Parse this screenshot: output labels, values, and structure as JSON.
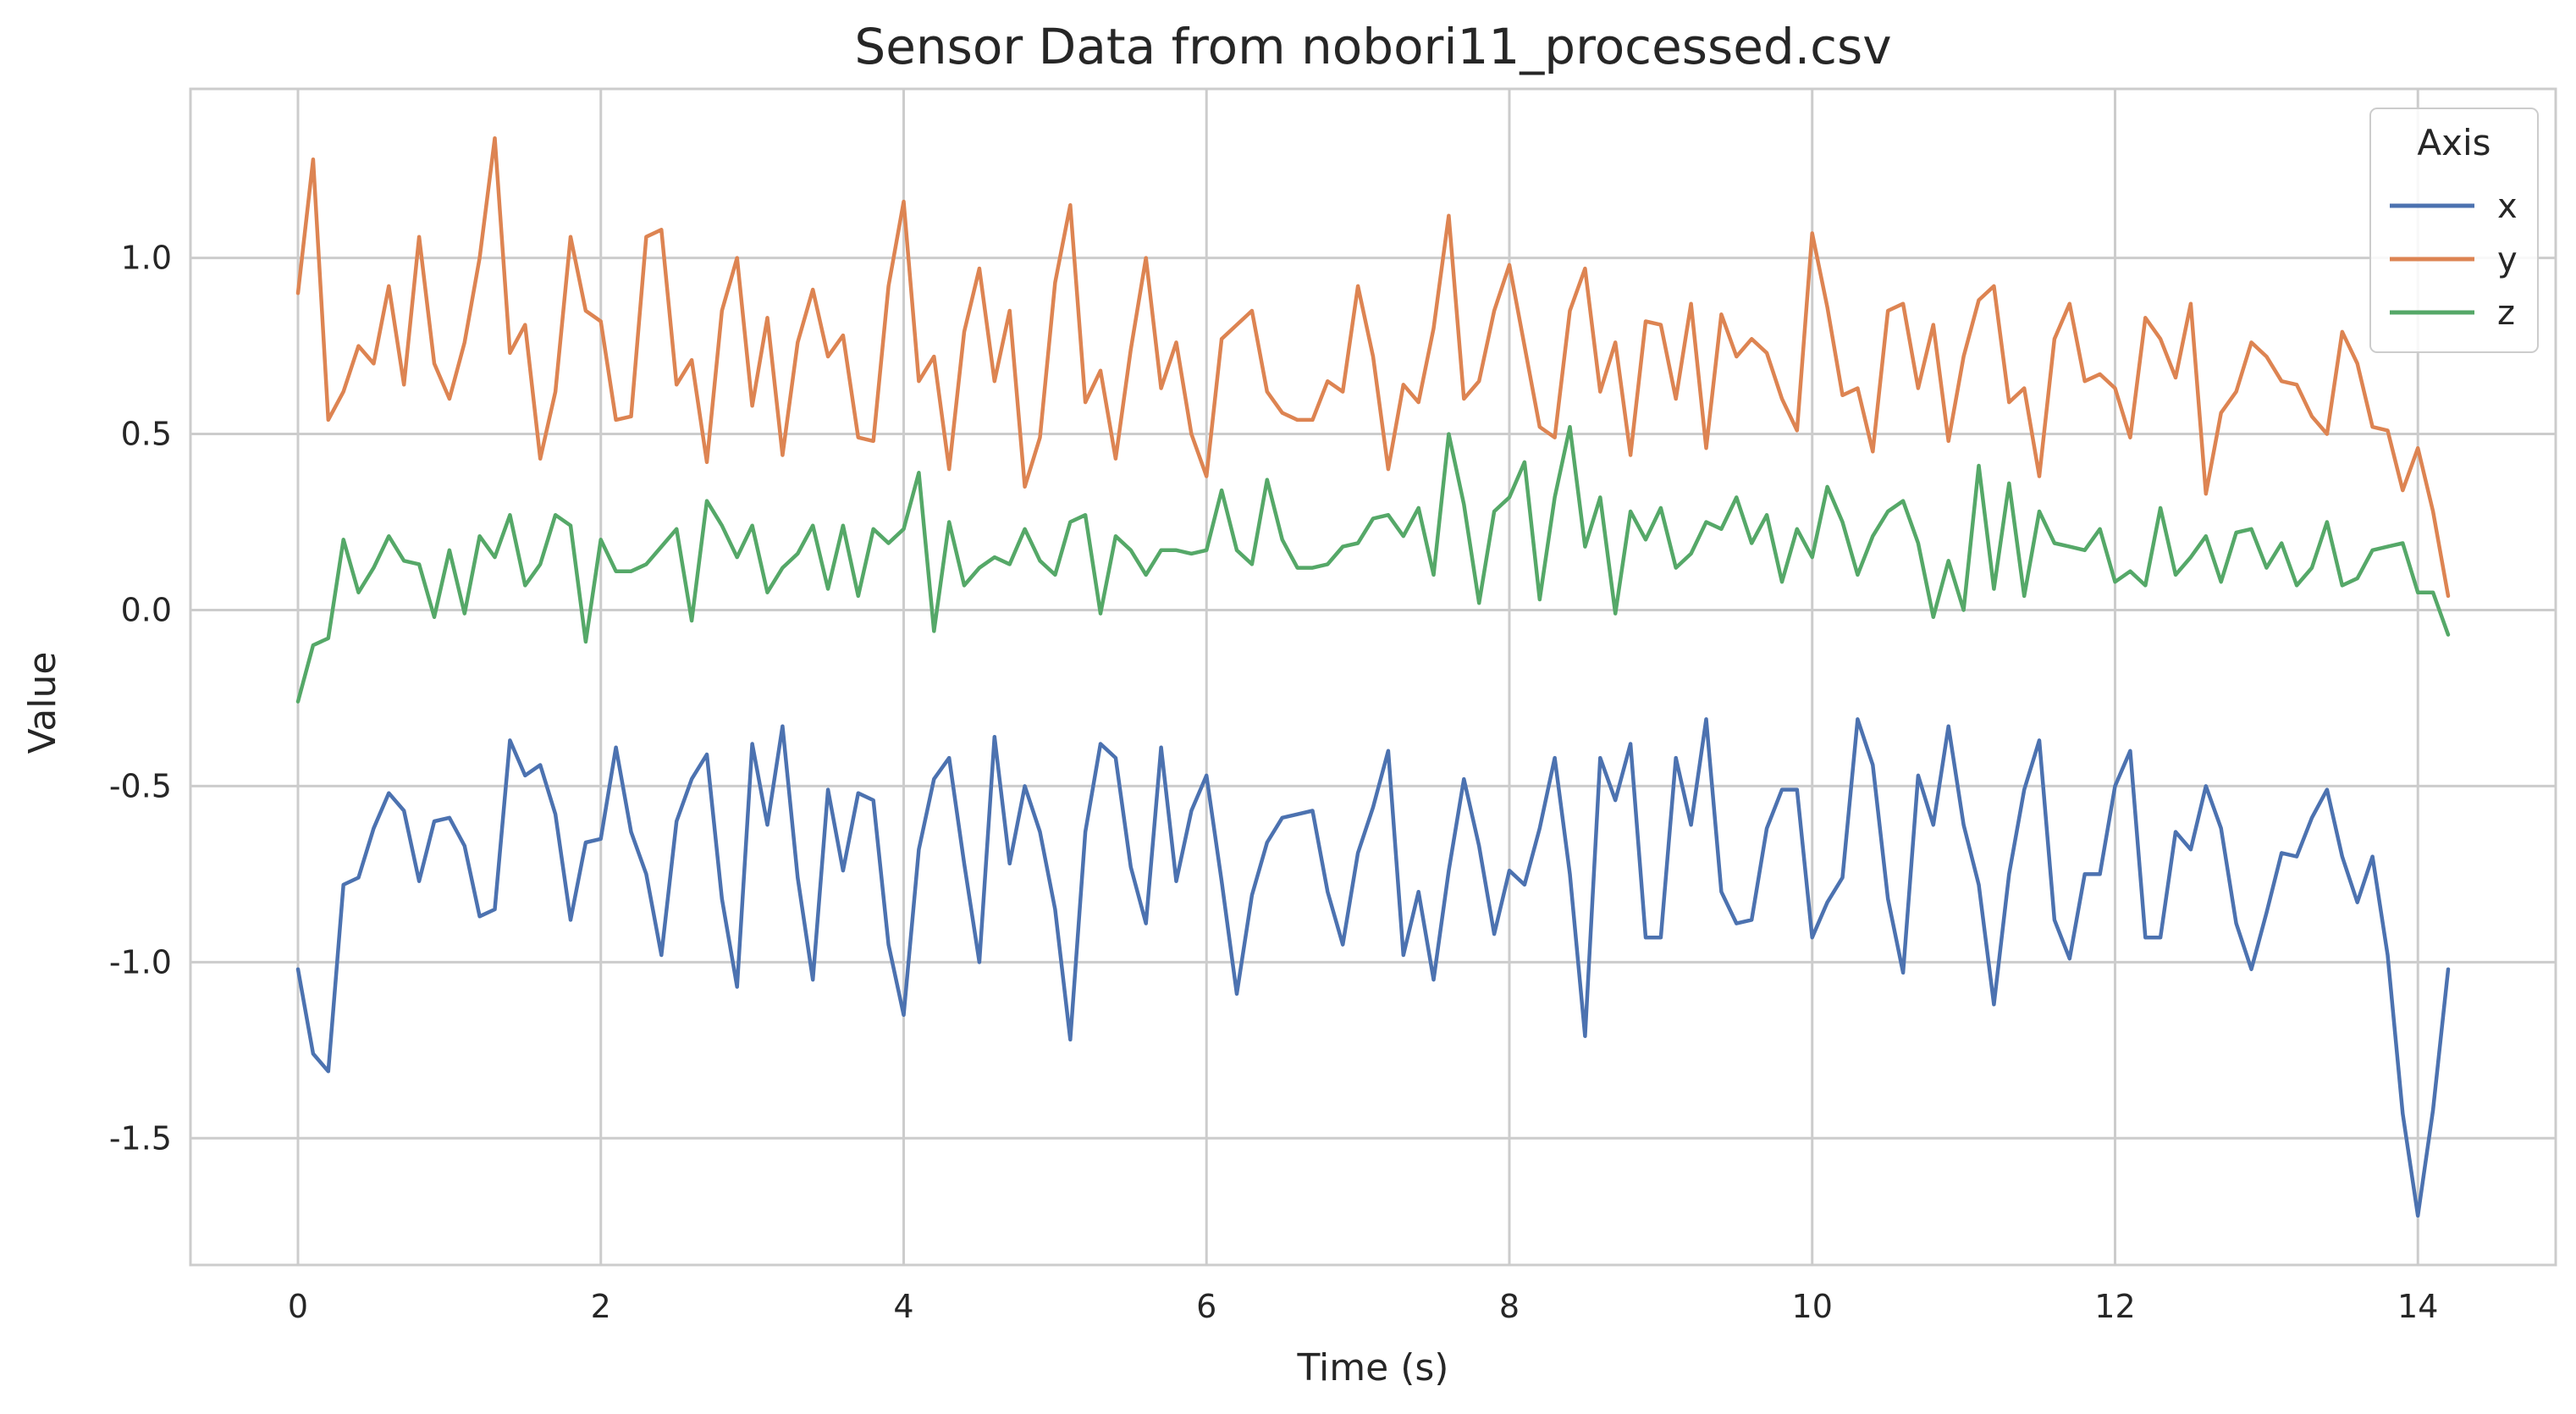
{
  "chart_data": {
    "type": "line",
    "title": "Sensor Data from nobori11_processed.csv",
    "xlabel": "Time (s)",
    "ylabel": "Value",
    "xlim": [
      -0.71,
      14.91
    ],
    "ylim": [
      -1.86,
      1.48
    ],
    "xticks": [
      0,
      2,
      4,
      6,
      8,
      10,
      12,
      14
    ],
    "xtick_labels": [
      "0",
      "2",
      "4",
      "6",
      "8",
      "10",
      "12",
      "14"
    ],
    "yticks": [
      -1.5,
      -1.0,
      -0.5,
      0.0,
      0.5,
      1.0
    ],
    "ytick_labels": [
      "-1.5",
      "-1.0",
      "-0.5",
      "0.0",
      "0.5",
      "1.0"
    ],
    "grid": true,
    "legend": {
      "title": "Axis",
      "placement": "top-right"
    },
    "x_start": 0.0,
    "x_step": 0.1,
    "series": [
      {
        "name": "x",
        "color": "#4c72b0",
        "values": [
          -1.02,
          -1.26,
          -1.31,
          -0.78,
          -0.76,
          -0.62,
          -0.52,
          -0.57,
          -0.77,
          -0.6,
          -0.59,
          -0.67,
          -0.87,
          -0.85,
          -0.37,
          -0.47,
          -0.44,
          -0.58,
          -0.88,
          -0.66,
          -0.65,
          -0.39,
          -0.63,
          -0.75,
          -0.98,
          -0.6,
          -0.48,
          -0.41,
          -0.82,
          -1.07,
          -0.38,
          -0.61,
          -0.33,
          -0.76,
          -1.05,
          -0.51,
          -0.74,
          -0.52,
          -0.54,
          -0.95,
          -1.15,
          -0.68,
          -0.48,
          -0.42,
          -0.72,
          -1.0,
          -0.36,
          -0.72,
          -0.5,
          -0.63,
          -0.85,
          -1.22,
          -0.63,
          -0.38,
          -0.42,
          -0.73,
          -0.89,
          -0.39,
          -0.77,
          -0.57,
          -0.47,
          -0.77,
          -1.09,
          -0.81,
          -0.66,
          -0.59,
          -0.58,
          -0.57,
          -0.8,
          -0.95,
          -0.69,
          -0.56,
          -0.4,
          -0.98,
          -0.8,
          -1.05,
          -0.74,
          -0.48,
          -0.67,
          -0.92,
          -0.74,
          -0.78,
          -0.62,
          -0.42,
          -0.75,
          -1.21,
          -0.42,
          -0.54,
          -0.38,
          -0.93,
          -0.93,
          -0.42,
          -0.61,
          -0.31,
          -0.8,
          -0.89,
          -0.88,
          -0.62,
          -0.51,
          -0.51,
          -0.93,
          -0.83,
          -0.76,
          -0.31,
          -0.44,
          -0.82,
          -1.03,
          -0.47,
          -0.61,
          -0.33,
          -0.61,
          -0.78,
          -1.12,
          -0.75,
          -0.51,
          -0.37,
          -0.88,
          -0.99,
          -0.75,
          -0.75,
          -0.5,
          -0.4,
          -0.93,
          -0.93,
          -0.63,
          -0.68,
          -0.5,
          -0.62,
          -0.89,
          -1.02,
          -0.86,
          -0.69,
          -0.7,
          -0.59,
          -0.51,
          -0.7,
          -0.83,
          -0.7,
          -0.98,
          -1.43,
          -1.72,
          -1.42,
          -1.02
        ]
      },
      {
        "name": "y",
        "color": "#dd8452",
        "values": [
          0.9,
          1.28,
          0.54,
          0.62,
          0.75,
          0.7,
          0.92,
          0.64,
          1.06,
          0.7,
          0.6,
          0.76,
          1.0,
          1.34,
          0.73,
          0.81,
          0.43,
          0.62,
          1.06,
          0.85,
          0.82,
          0.54,
          0.55,
          1.06,
          1.08,
          0.64,
          0.71,
          0.42,
          0.85,
          1.0,
          0.58,
          0.83,
          0.44,
          0.76,
          0.91,
          0.72,
          0.78,
          0.49,
          0.48,
          0.92,
          1.16,
          0.65,
          0.72,
          0.4,
          0.79,
          0.97,
          0.65,
          0.85,
          0.35,
          0.49,
          0.93,
          1.15,
          0.59,
          0.68,
          0.43,
          0.74,
          1.0,
          0.63,
          0.76,
          0.5,
          0.38,
          0.77,
          0.81,
          0.85,
          0.62,
          0.56,
          0.54,
          0.54,
          0.65,
          0.62,
          0.92,
          0.72,
          0.4,
          0.64,
          0.59,
          0.8,
          1.12,
          0.6,
          0.65,
          0.85,
          0.98,
          0.75,
          0.52,
          0.49,
          0.85,
          0.97,
          0.62,
          0.76,
          0.44,
          0.82,
          0.81,
          0.6,
          0.87,
          0.46,
          0.84,
          0.72,
          0.77,
          0.73,
          0.6,
          0.51,
          1.07,
          0.86,
          0.61,
          0.63,
          0.45,
          0.85,
          0.87,
          0.63,
          0.81,
          0.48,
          0.72,
          0.88,
          0.92,
          0.59,
          0.63,
          0.38,
          0.77,
          0.87,
          0.65,
          0.67,
          0.63,
          0.49,
          0.83,
          0.77,
          0.66,
          0.87,
          0.33,
          0.56,
          0.62,
          0.76,
          0.72,
          0.65,
          0.64,
          0.55,
          0.5,
          0.79,
          0.7,
          0.52,
          0.51,
          0.34,
          0.46,
          0.28,
          0.04
        ]
      },
      {
        "name": "z",
        "color": "#55a868",
        "values": [
          -0.26,
          -0.1,
          -0.08,
          0.2,
          0.05,
          0.12,
          0.21,
          0.14,
          0.13,
          -0.02,
          0.17,
          -0.01,
          0.21,
          0.15,
          0.27,
          0.07,
          0.13,
          0.27,
          0.24,
          -0.09,
          0.2,
          0.11,
          0.11,
          0.13,
          0.18,
          0.23,
          -0.03,
          0.31,
          0.24,
          0.15,
          0.24,
          0.05,
          0.12,
          0.16,
          0.24,
          0.06,
          0.24,
          0.04,
          0.23,
          0.19,
          0.23,
          0.39,
          -0.06,
          0.25,
          0.07,
          0.12,
          0.15,
          0.13,
          0.23,
          0.14,
          0.1,
          0.25,
          0.27,
          -0.01,
          0.21,
          0.17,
          0.1,
          0.17,
          0.17,
          0.16,
          0.17,
          0.34,
          0.17,
          0.13,
          0.37,
          0.2,
          0.12,
          0.12,
          0.13,
          0.18,
          0.19,
          0.26,
          0.27,
          0.21,
          0.29,
          0.1,
          0.5,
          0.3,
          0.02,
          0.28,
          0.32,
          0.42,
          0.03,
          0.32,
          0.52,
          0.18,
          0.32,
          -0.01,
          0.28,
          0.2,
          0.29,
          0.12,
          0.16,
          0.25,
          0.23,
          0.32,
          0.19,
          0.27,
          0.08,
          0.23,
          0.15,
          0.35,
          0.25,
          0.1,
          0.21,
          0.28,
          0.31,
          0.19,
          -0.02,
          0.14,
          0.0,
          0.41,
          0.06,
          0.36,
          0.04,
          0.28,
          0.19,
          0.18,
          0.17,
          0.23,
          0.08,
          0.11,
          0.07,
          0.29,
          0.1,
          0.15,
          0.21,
          0.08,
          0.22,
          0.23,
          0.12,
          0.19,
          0.07,
          0.12,
          0.25,
          0.07,
          0.09,
          0.17,
          0.18,
          0.19,
          0.05,
          0.05,
          -0.07
        ]
      }
    ]
  }
}
